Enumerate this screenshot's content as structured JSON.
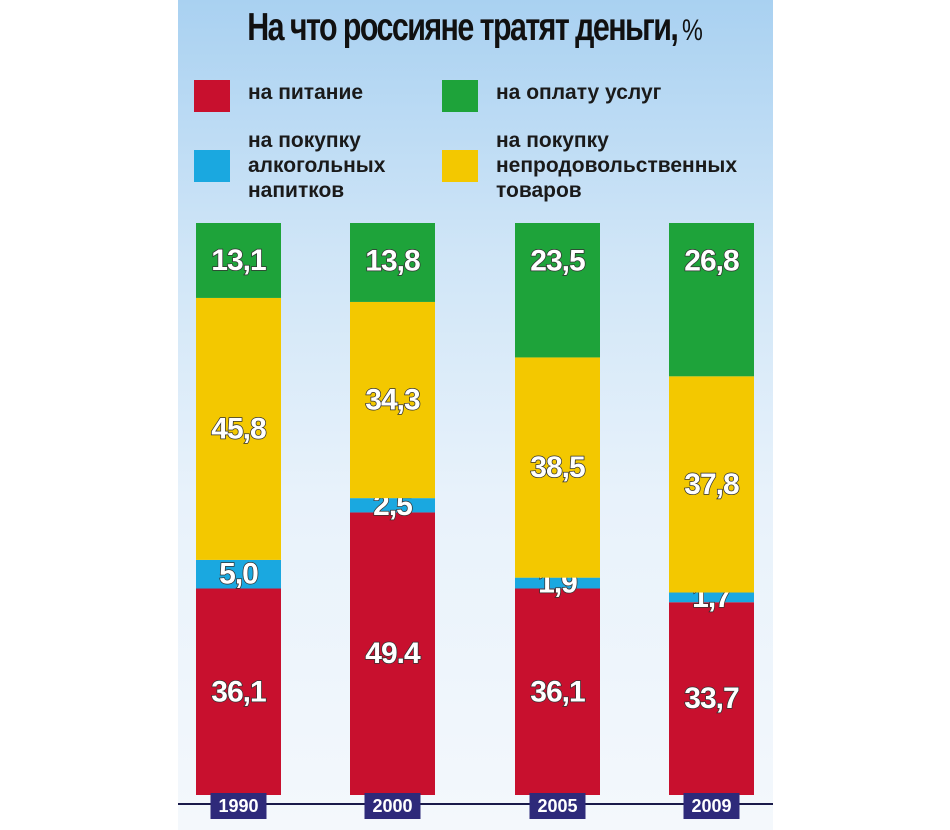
{
  "colors": {
    "food": "#c8102e",
    "services": "#1ea33a",
    "alcohol": "#1aa8e0",
    "nonfood": "#f3c800",
    "year_badge": "#2e2a7a"
  },
  "legend": [
    {
      "key": "food",
      "label": "на питание"
    },
    {
      "key": "services",
      "label": "на оплату услуг"
    },
    {
      "key": "alcohol",
      "label": "на покупку\nалкогольных\nнапитков"
    },
    {
      "key": "nonfood",
      "label": "на покупку\nнепродовольственных\nтоваров"
    }
  ],
  "chart_data": {
    "type": "bar",
    "stacked": true,
    "title": "На что россияне тратят деньги,",
    "title_unit": "%",
    "categories": [
      "1990",
      "2000",
      "2005",
      "2009"
    ],
    "series": [
      {
        "name": "на питание",
        "key": "food",
        "values": [
          36.1,
          49.4,
          36.1,
          33.7
        ],
        "labels": [
          "36,1",
          "49.4",
          "36,1",
          "33,7"
        ]
      },
      {
        "name": "на покупку алкогольных напитков",
        "key": "alcohol",
        "values": [
          5.0,
          2.5,
          1.9,
          1.7
        ],
        "labels": [
          "5,0",
          "2,5",
          "1,9",
          "1,7"
        ]
      },
      {
        "name": "на покупку непродовольственных товаров",
        "key": "nonfood",
        "values": [
          45.8,
          34.3,
          38.5,
          37.8
        ],
        "labels": [
          "45,8",
          "34,3",
          "38,5",
          "37,8"
        ]
      },
      {
        "name": "на оплату услуг",
        "key": "services",
        "values": [
          13.1,
          13.8,
          23.5,
          26.8
        ],
        "labels": [
          "13,1",
          "13,8",
          "23,5",
          "26,8"
        ]
      }
    ],
    "ylim": [
      0,
      100
    ],
    "grid": false,
    "legend_position": "top"
  }
}
